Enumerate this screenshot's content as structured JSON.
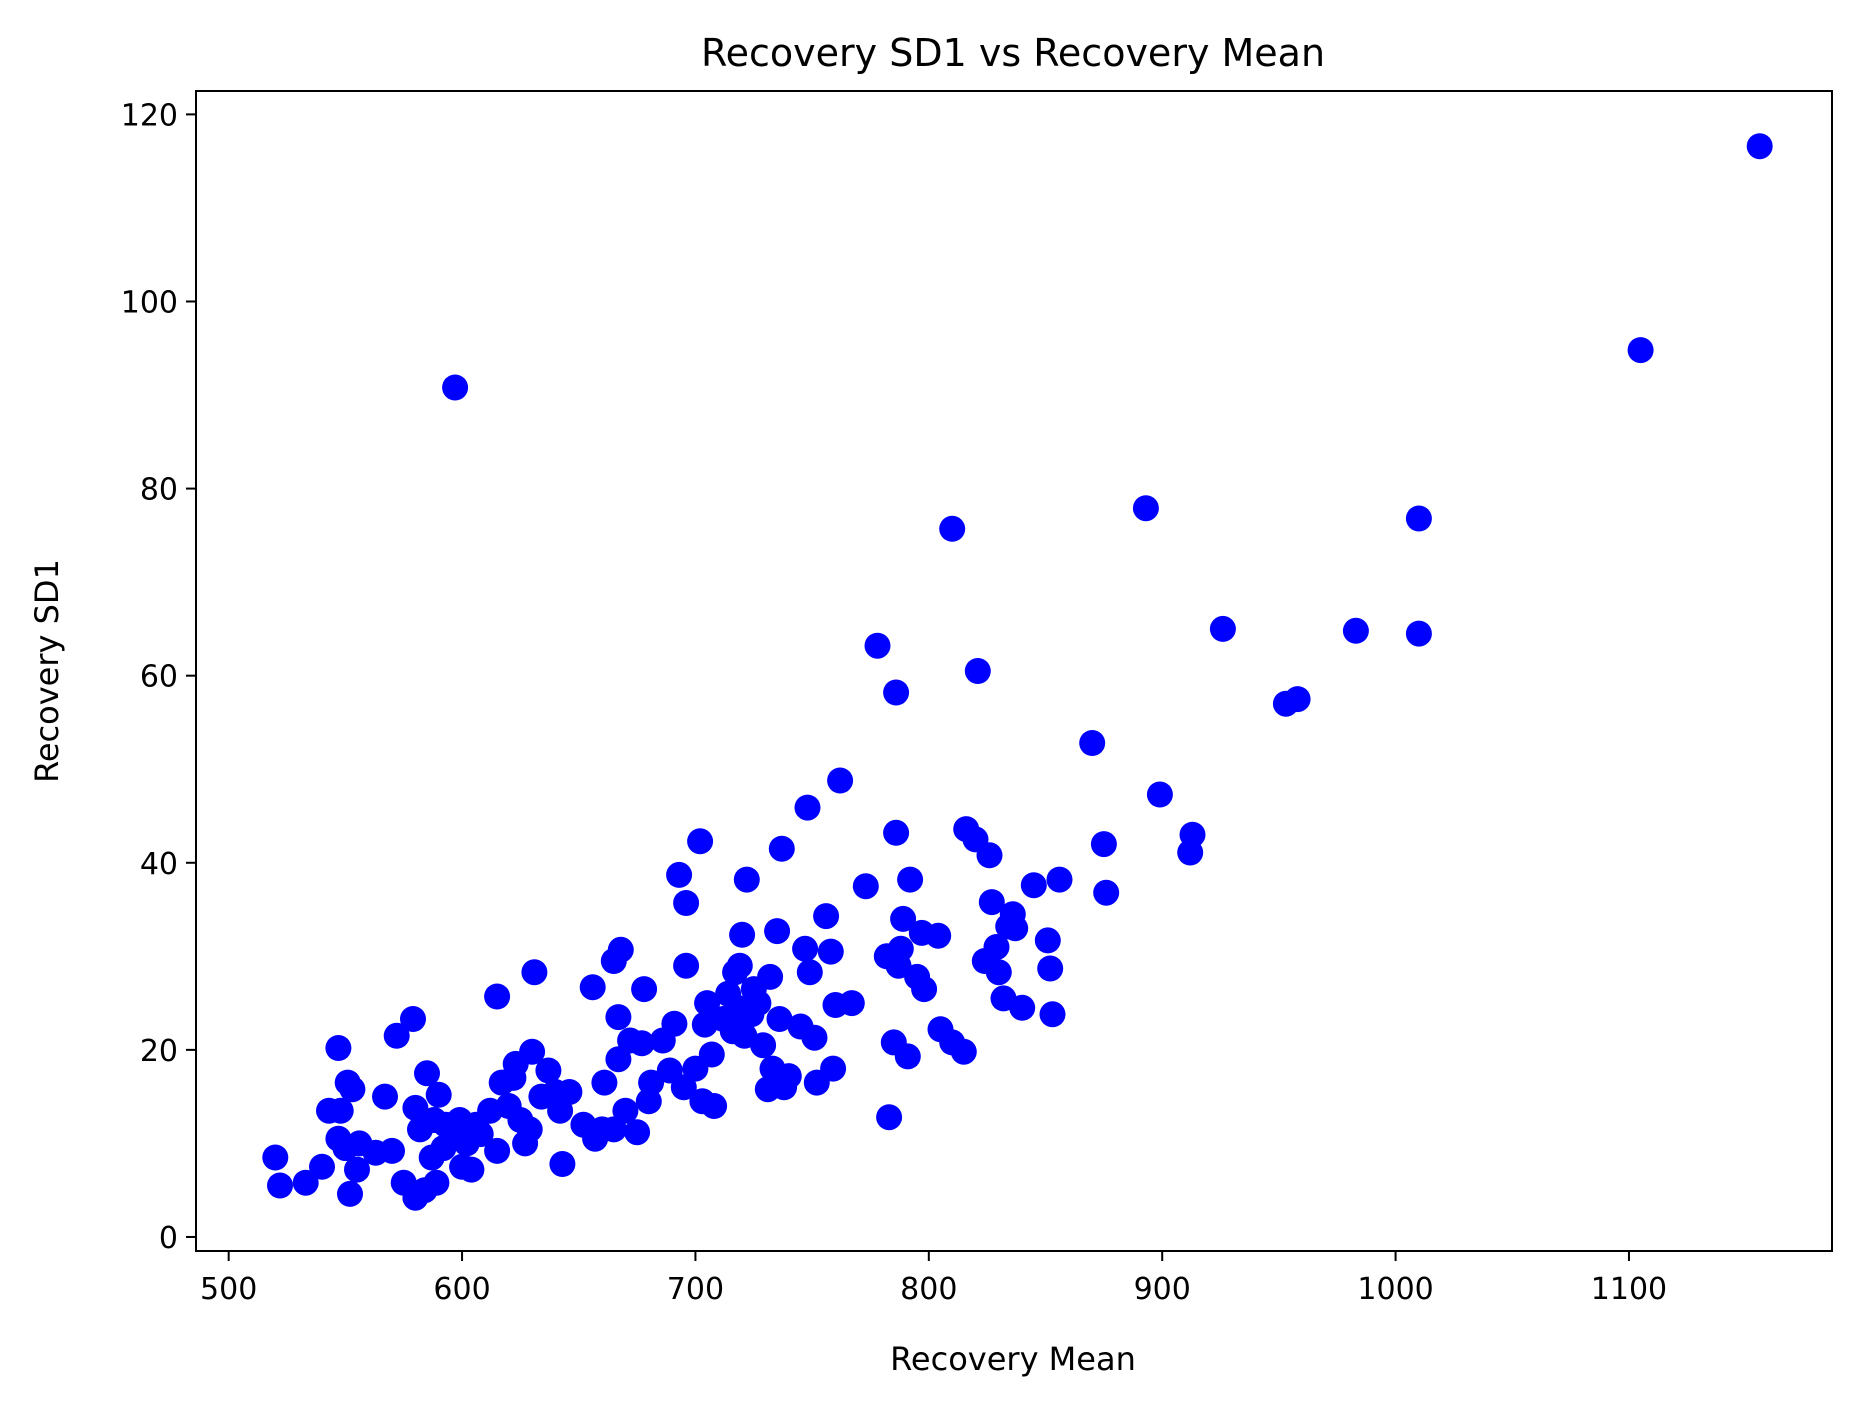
{
  "chart_data": {
    "type": "scatter",
    "title": "Recovery SD1 vs Recovery Mean",
    "xlabel": "Recovery Mean",
    "ylabel": "Recovery SD1",
    "xlim": [
      486,
      1187
    ],
    "ylim": [
      -1.5,
      122.5
    ],
    "xticks": [
      500,
      600,
      700,
      800,
      900,
      1000,
      1100
    ],
    "yticks": [
      0,
      20,
      40,
      60,
      80,
      100,
      120
    ],
    "grid": false,
    "legend": "none",
    "marker_color": "#0000ff",
    "series": [
      {
        "points": [
          [
            520,
            8.5
          ],
          [
            522,
            5.5
          ],
          [
            533,
            5.8
          ],
          [
            540,
            7.5
          ],
          [
            543,
            13.5
          ],
          [
            547,
            10.5
          ],
          [
            547,
            20.2
          ],
          [
            548,
            13.5
          ],
          [
            550,
            9.5
          ],
          [
            551,
            16.5
          ],
          [
            552,
            4.6
          ],
          [
            553,
            15.8
          ],
          [
            555,
            7.2
          ],
          [
            556,
            10.0
          ],
          [
            563,
            9.0
          ],
          [
            567,
            15.0
          ],
          [
            570,
            9.2
          ],
          [
            572,
            21.5
          ],
          [
            575,
            5.8
          ],
          [
            579,
            23.3
          ],
          [
            580,
            4.2
          ],
          [
            580,
            13.8
          ],
          [
            582,
            11.5
          ],
          [
            584,
            5.0
          ],
          [
            585,
            17.5
          ],
          [
            587,
            8.5
          ],
          [
            588,
            12.5
          ],
          [
            589,
            5.8
          ],
          [
            590,
            15.2
          ],
          [
            592,
            9.5
          ],
          [
            593,
            12.0
          ],
          [
            596,
            10.5
          ],
          [
            597,
            90.8
          ],
          [
            599,
            12.5
          ],
          [
            600,
            7.5
          ],
          [
            602,
            10.0
          ],
          [
            604,
            7.2
          ],
          [
            606,
            12.0
          ],
          [
            608,
            11.0
          ],
          [
            612,
            13.5
          ],
          [
            615,
            9.2
          ],
          [
            615,
            25.7
          ],
          [
            617,
            16.5
          ],
          [
            620,
            14.0
          ],
          [
            622,
            17.0
          ],
          [
            623,
            18.5
          ],
          [
            625,
            12.5
          ],
          [
            627,
            10.0
          ],
          [
            629,
            11.5
          ],
          [
            630,
            19.8
          ],
          [
            631,
            28.3
          ],
          [
            634,
            15.0
          ],
          [
            637,
            17.8
          ],
          [
            640,
            15.5
          ],
          [
            642,
            13.5
          ],
          [
            643,
            7.8
          ],
          [
            646,
            15.5
          ],
          [
            652,
            12.0
          ],
          [
            656,
            26.7
          ],
          [
            657,
            10.5
          ],
          [
            660,
            11.5
          ],
          [
            661,
            16.5
          ],
          [
            665,
            29.5
          ],
          [
            665,
            11.5
          ],
          [
            667,
            23.5
          ],
          [
            667,
            19.0
          ],
          [
            668,
            30.7
          ],
          [
            670,
            13.5
          ],
          [
            672,
            21.0
          ],
          [
            675,
            11.2
          ],
          [
            677,
            20.7
          ],
          [
            678,
            26.5
          ],
          [
            680,
            14.5
          ],
          [
            681,
            16.5
          ],
          [
            686,
            21.0
          ],
          [
            689,
            17.8
          ],
          [
            691,
            22.8
          ],
          [
            693,
            38.7
          ],
          [
            695,
            16.0
          ],
          [
            696,
            35.7
          ],
          [
            696,
            29.0
          ],
          [
            700,
            18.0
          ],
          [
            702,
            42.3
          ],
          [
            703,
            14.5
          ],
          [
            704,
            22.7
          ],
          [
            705,
            25.0
          ],
          [
            707,
            19.5
          ],
          [
            708,
            14.0
          ],
          [
            712,
            23.3
          ],
          [
            714,
            26.0
          ],
          [
            716,
            22.0
          ],
          [
            717,
            28.3
          ],
          [
            718,
            24.5
          ],
          [
            719,
            29.0
          ],
          [
            720,
            32.3
          ],
          [
            721,
            21.5
          ],
          [
            722,
            38.2
          ],
          [
            724,
            23.8
          ],
          [
            725,
            26.5
          ],
          [
            727,
            25.0
          ],
          [
            729,
            20.5
          ],
          [
            731,
            15.8
          ],
          [
            732,
            27.8
          ],
          [
            733,
            18.0
          ],
          [
            735,
            32.7
          ],
          [
            736,
            23.3
          ],
          [
            737,
            41.5
          ],
          [
            738,
            16.0
          ],
          [
            740,
            17.2
          ],
          [
            745,
            22.5
          ],
          [
            747,
            30.8
          ],
          [
            748,
            45.9
          ],
          [
            749,
            28.3
          ],
          [
            751,
            21.3
          ],
          [
            752,
            16.5
          ],
          [
            756,
            34.3
          ],
          [
            758,
            30.5
          ],
          [
            759,
            18.0
          ],
          [
            760,
            24.8
          ],
          [
            762,
            48.8
          ],
          [
            767,
            25.0
          ],
          [
            773,
            37.5
          ],
          [
            778,
            63.2
          ],
          [
            782,
            30.0
          ],
          [
            783,
            12.8
          ],
          [
            785,
            20.8
          ],
          [
            786,
            58.2
          ],
          [
            786,
            43.2
          ],
          [
            787,
            29.0
          ],
          [
            788,
            30.8
          ],
          [
            789,
            34.0
          ],
          [
            791,
            19.3
          ],
          [
            792,
            38.2
          ],
          [
            795,
            27.8
          ],
          [
            797,
            32.5
          ],
          [
            798,
            26.5
          ],
          [
            804,
            32.2
          ],
          [
            805,
            22.2
          ],
          [
            810,
            75.7
          ],
          [
            810,
            20.8
          ],
          [
            815,
            19.8
          ],
          [
            816,
            43.6
          ],
          [
            820,
            42.5
          ],
          [
            821,
            60.5
          ],
          [
            824,
            29.5
          ],
          [
            826,
            40.8
          ],
          [
            827,
            35.8
          ],
          [
            829,
            31.0
          ],
          [
            830,
            28.3
          ],
          [
            832,
            25.5
          ],
          [
            834,
            33.2
          ],
          [
            836,
            34.5
          ],
          [
            837,
            33.0
          ],
          [
            840,
            24.5
          ],
          [
            845,
            37.6
          ],
          [
            851,
            31.7
          ],
          [
            852,
            28.7
          ],
          [
            853,
            23.8
          ],
          [
            856,
            38.2
          ],
          [
            870,
            52.8
          ],
          [
            875,
            42.0
          ],
          [
            876,
            36.8
          ],
          [
            893,
            77.9
          ],
          [
            899,
            47.3
          ],
          [
            912,
            41.1
          ],
          [
            913,
            43.0
          ],
          [
            926,
            65.0
          ],
          [
            953,
            57.0
          ],
          [
            958,
            57.5
          ],
          [
            983,
            64.8
          ],
          [
            1010,
            64.5
          ],
          [
            1010,
            76.8
          ],
          [
            1105,
            94.8
          ],
          [
            1156,
            116.6
          ]
        ]
      }
    ]
  }
}
